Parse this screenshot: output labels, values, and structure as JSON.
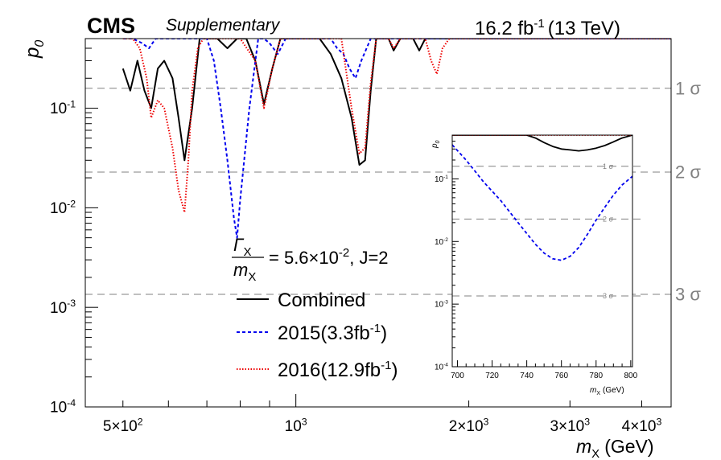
{
  "header": {
    "experiment": "CMS",
    "label": "Supplementary",
    "lumi_value": "16.2 fb",
    "lumi_exp": "-1",
    "energy": "(13 TeV)"
  },
  "colors": {
    "combined": "#000000",
    "s2015": "#0000ee",
    "s2016": "#ee0000",
    "sigma": "#808080"
  },
  "chart_data": [
    {
      "type": "line",
      "xlabel_var": "m",
      "xlabel_sub": "X",
      "xlabel_unit": "(GeV)",
      "ylabel": "p",
      "ylabel_sub": "0",
      "xscale": "log",
      "yscale": "log",
      "xlim": [
        430,
        4500
      ],
      "ylim": [
        0.0001,
        0.5
      ],
      "x_ticks": [
        {
          "value": 500,
          "mantissa": "5×10",
          "exp": "2"
        },
        {
          "value": 1000,
          "mantissa": "10",
          "exp": "3"
        },
        {
          "value": 2000,
          "mantissa": "2×10",
          "exp": "3"
        },
        {
          "value": 3000,
          "mantissa": "3×10",
          "exp": "3"
        },
        {
          "value": 4000,
          "mantissa": "4×10",
          "exp": "3"
        }
      ],
      "y_ticks": [
        {
          "value": 0.1,
          "mantissa": "10",
          "exp": "-1"
        },
        {
          "value": 0.01,
          "mantissa": "10",
          "exp": "-2"
        },
        {
          "value": 0.001,
          "mantissa": "10",
          "exp": "-3"
        },
        {
          "value": 0.0001,
          "mantissa": "10",
          "exp": "-4"
        }
      ],
      "sigma_lines": [
        {
          "label": "1 σ",
          "value": 0.1587
        },
        {
          "label": "2 σ",
          "value": 0.0228
        },
        {
          "label": "3 σ",
          "value": 0.00135
        }
      ],
      "legend": {
        "width_label": "Γ",
        "width_sub": "X",
        "mass_label": "m",
        "mass_sub": "X",
        "relation": "= 5.6×10",
        "relation_exp": "-2",
        "spin": ", J=2",
        "placement": "center"
      },
      "series": [
        {
          "name": "Combined",
          "style": "solid",
          "x": [
            500,
            515,
            530,
            545,
            560,
            575,
            590,
            610,
            625,
            640,
            660,
            680,
            700,
            730,
            760,
            790,
            820,
            850,
            880,
            910,
            940,
            970,
            1000,
            1100,
            1150,
            1200,
            1250,
            1290,
            1320,
            1350,
            1380,
            1410,
            1450,
            1480,
            1520,
            1560,
            1600,
            1640,
            1680,
            1720,
            1760,
            1800,
            1850,
            4500
          ],
          "y": [
            0.25,
            0.15,
            0.3,
            0.15,
            0.1,
            0.25,
            0.3,
            0.2,
            0.08,
            0.03,
            0.1,
            0.5,
            0.5,
            0.5,
            0.4,
            0.5,
            0.5,
            0.3,
            0.11,
            0.25,
            0.5,
            0.5,
            0.5,
            0.5,
            0.35,
            0.2,
            0.08,
            0.027,
            0.03,
            0.15,
            0.5,
            0.5,
            0.5,
            0.38,
            0.5,
            0.5,
            0.5,
            0.38,
            0.5,
            0.5,
            0.5,
            0.5,
            0.5,
            0.5
          ]
        },
        {
          "name": "2015(3.3fb",
          "name_exp": "-1",
          "style": "dashed",
          "x": [
            500,
            520,
            540,
            555,
            570,
            600,
            630,
            660,
            700,
            720,
            740,
            760,
            780,
            790,
            800,
            830,
            860,
            880,
            900,
            930,
            960,
            1000,
            1080,
            1150,
            1180,
            1210,
            1240,
            1270,
            1300,
            1350,
            1400,
            1500,
            1550,
            1600,
            1650,
            1700,
            4500
          ],
          "y": [
            0.5,
            0.5,
            0.45,
            0.4,
            0.5,
            0.5,
            0.5,
            0.5,
            0.5,
            0.3,
            0.1,
            0.03,
            0.008,
            0.005,
            0.012,
            0.1,
            0.5,
            0.5,
            0.45,
            0.35,
            0.5,
            0.5,
            0.5,
            0.5,
            0.4,
            0.35,
            0.25,
            0.2,
            0.3,
            0.5,
            0.5,
            0.5,
            0.5,
            0.5,
            0.5,
            0.5,
            0.5
          ]
        },
        {
          "name": "2016(12.9fb",
          "name_exp": "-1",
          "style": "dotted",
          "x": [
            500,
            520,
            535,
            550,
            560,
            575,
            590,
            610,
            625,
            640,
            650,
            660,
            675,
            690,
            720,
            760,
            800,
            850,
            880,
            910,
            940,
            970,
            1000,
            1200,
            1250,
            1290,
            1320,
            1350,
            1380,
            1410,
            1450,
            1480,
            1520,
            1600,
            1680,
            1720,
            1760,
            1800,
            1850,
            4500
          ],
          "y": [
            0.5,
            0.5,
            0.4,
            0.2,
            0.08,
            0.12,
            0.1,
            0.04,
            0.015,
            0.009,
            0.03,
            0.15,
            0.4,
            0.5,
            0.5,
            0.5,
            0.5,
            0.3,
            0.1,
            0.25,
            0.5,
            0.5,
            0.5,
            0.5,
            0.1,
            0.035,
            0.04,
            0.18,
            0.5,
            0.5,
            0.5,
            0.4,
            0.5,
            0.5,
            0.5,
            0.3,
            0.22,
            0.4,
            0.5,
            0.5
          ]
        }
      ]
    },
    {
      "type": "line",
      "xlabel_var": "m",
      "xlabel_sub": "X",
      "xlabel_unit": "(GeV)",
      "ylabel": "p",
      "ylabel_sub": "0",
      "xscale": "linear",
      "yscale": "log",
      "xlim": [
        697,
        801
      ],
      "ylim": [
        0.0001,
        0.5
      ],
      "x_ticks": [
        700,
        720,
        740,
        760,
        780,
        800
      ],
      "y_ticks": [
        {
          "value": 0.1,
          "mantissa": "10",
          "exp": "-1"
        },
        {
          "value": 0.01,
          "mantissa": "10",
          "exp": "-2"
        },
        {
          "value": 0.001,
          "mantissa": "10",
          "exp": "-3"
        },
        {
          "value": 0.0001,
          "mantissa": "10",
          "exp": "-4"
        }
      ],
      "sigma_lines": [
        {
          "label": "1 σ",
          "value": 0.1587
        },
        {
          "label": "2 σ",
          "value": 0.0228
        },
        {
          "label": "3 σ",
          "value": 0.00135
        }
      ],
      "series": [
        {
          "name": "Combined",
          "style": "solid",
          "x": [
            697,
            740,
            745,
            750,
            755,
            760,
            765,
            770,
            775,
            780,
            785,
            790,
            795,
            801
          ],
          "y": [
            0.5,
            0.5,
            0.45,
            0.38,
            0.33,
            0.3,
            0.29,
            0.28,
            0.29,
            0.31,
            0.34,
            0.39,
            0.45,
            0.5
          ]
        },
        {
          "name": "2015",
          "style": "dashed",
          "x": [
            697,
            705,
            715,
            725,
            735,
            745,
            750,
            755,
            760,
            765,
            770,
            775,
            780,
            785,
            790,
            795,
            801
          ],
          "y": [
            0.35,
            0.2,
            0.09,
            0.045,
            0.02,
            0.009,
            0.0065,
            0.0053,
            0.005,
            0.0058,
            0.008,
            0.013,
            0.022,
            0.035,
            0.055,
            0.08,
            0.11
          ]
        },
        {
          "name": "2016",
          "style": "dotted",
          "x": [
            697,
            801
          ],
          "y": [
            0.5,
            0.5
          ]
        }
      ]
    }
  ]
}
